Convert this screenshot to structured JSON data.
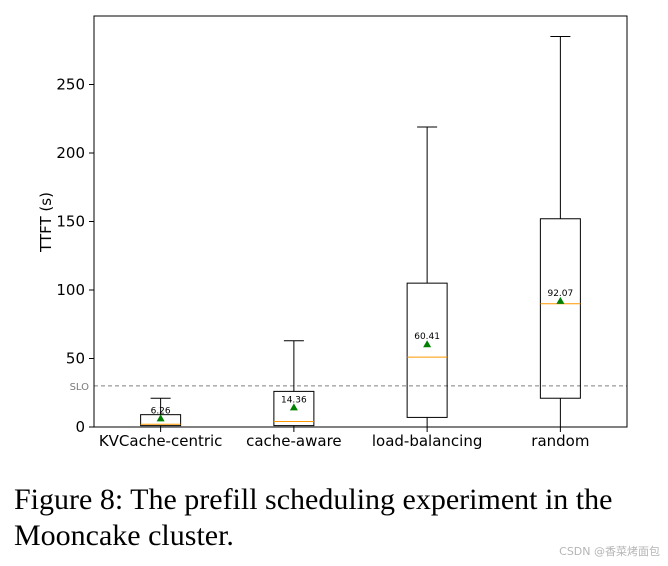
{
  "chart_data": {
    "type": "box",
    "categories": [
      "KVCache-centric",
      "cache-aware",
      "load-balancing",
      "random"
    ],
    "series": [
      {
        "name": "KVCache-centric",
        "whisker_low": 0,
        "q1": 1,
        "median": 2,
        "q3": 9,
        "whisker_high": 21,
        "mean": 6.26,
        "mean_label": "6.26"
      },
      {
        "name": "cache-aware",
        "whisker_low": 0,
        "q1": 1,
        "median": 4,
        "q3": 26,
        "whisker_high": 63,
        "mean": 14.36,
        "mean_label": "14.36"
      },
      {
        "name": "load-balancing",
        "whisker_low": 0,
        "q1": 7,
        "median": 51,
        "q3": 105,
        "whisker_high": 219,
        "mean": 60.41,
        "mean_label": "60.41"
      },
      {
        "name": "random",
        "whisker_low": 0,
        "q1": 21,
        "median": 90,
        "q3": 152,
        "whisker_high": 285,
        "mean": 92.07,
        "mean_label": "92.07"
      }
    ],
    "ylabel": "TTFT (s)",
    "xlabel": "",
    "ylim": [
      0,
      300
    ],
    "yticks": [
      0,
      50,
      100,
      150,
      200,
      250
    ],
    "slo": {
      "value": 30,
      "label": "SLO"
    },
    "colors": {
      "box": "#000000",
      "median": "#ff9900",
      "mean": "#008000",
      "slo": "#808080"
    }
  },
  "caption": "Figure 8: The prefill scheduling experiment in the Mooncake cluster.",
  "watermark": "CSDN @香菜烤面包"
}
